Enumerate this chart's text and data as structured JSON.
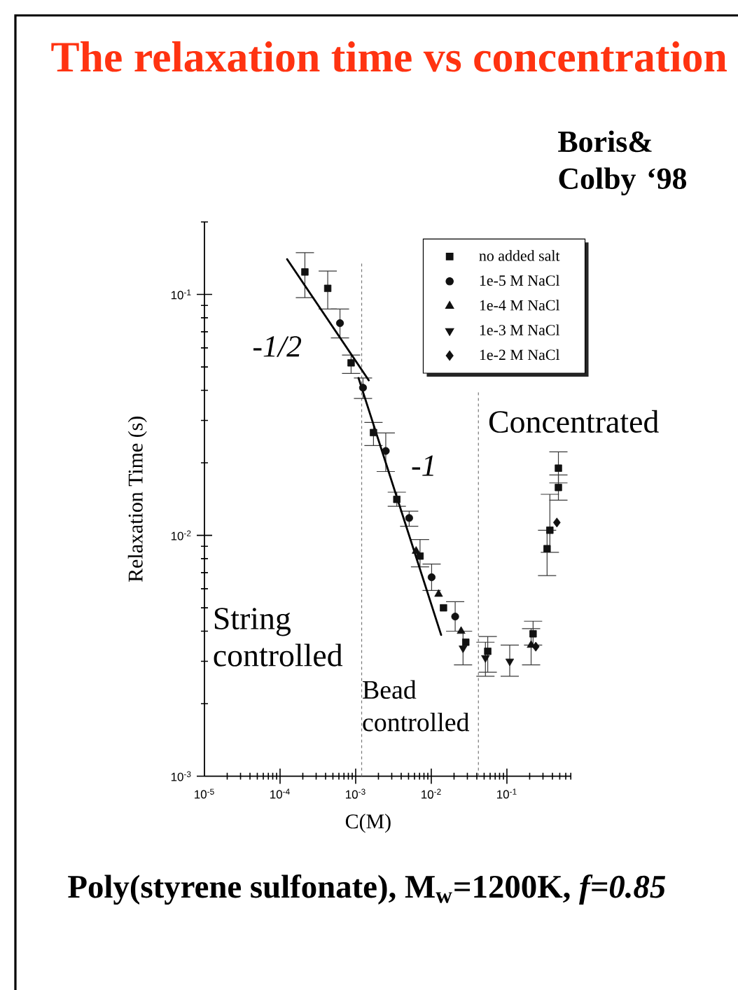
{
  "chart_data": {
    "type": "scatter",
    "title": "The relaxation time vs concentration",
    "xlabel": "C(M)",
    "ylabel": "Relaxation Time (s)",
    "log": "xy",
    "xlim": [
      1e-05,
      0.7
    ],
    "ylim": [
      0.001,
      0.2
    ],
    "xticks": [
      {
        "value": 1e-05,
        "label": "10$^{-5}$"
      },
      {
        "value": 0.0001,
        "label": "10$^{-4}$"
      },
      {
        "value": 0.001,
        "label": "10$^{-3}$"
      },
      {
        "value": 0.01,
        "label": "10$^{-2}$"
      },
      {
        "value": 0.1,
        "label": "10$^{-1}$"
      }
    ],
    "yticks": [
      {
        "value": 0.001,
        "label": "10$^{-3}$"
      },
      {
        "value": 0.01,
        "label": "10$^{-2}$"
      },
      {
        "value": 0.1,
        "label": "10$^{-1}$"
      }
    ],
    "legend": "top right",
    "series": [
      {
        "name": "no added salt",
        "color": "#111111",
        "marker": "square",
        "x": [
          0.000213,
          0.000427,
          0.00087,
          0.00172,
          0.0035,
          0.0071,
          0.0145,
          0.0286,
          0.0558,
          0.222,
          0.34,
          0.37,
          0.48,
          0.48
        ],
        "values": [
          0.124,
          0.106,
          0.052,
          0.0267,
          0.0141,
          0.0082,
          0.005,
          0.0036,
          0.0033,
          0.0039,
          0.0088,
          0.0105,
          0.0158,
          0.019
        ],
        "errors": [
          [
            0.097,
            0.149
          ],
          [
            0.087,
            0.125
          ],
          [
            0.047,
            0.056
          ],
          [
            0.0236,
            0.0294
          ],
          [
            0.0132,
            0.0151
          ],
          [
            0.0074,
            0.0096
          ],
          null,
          null,
          [
            0.0027,
            0.0038
          ],
          [
            0.0035,
            0.0044
          ],
          [
            0.0068,
            0.0105
          ],
          [
            0.0085,
            0.0148
          ],
          [
            0.014,
            0.0178
          ],
          [
            0.0165,
            0.0222
          ]
        ]
      },
      {
        "name": "1e-5 M NaCl",
        "color": "#111111",
        "marker": "circle",
        "x": [
          0.00062,
          0.00125,
          0.0025,
          0.0051,
          0.0101,
          0.0207
        ],
        "values": [
          0.076,
          0.041,
          0.0224,
          0.0118,
          0.0067,
          0.0046
        ],
        "errors": [
          [
            0.066,
            0.087
          ],
          [
            0.037,
            0.045
          ],
          [
            0.0184,
            0.0266
          ],
          [
            0.0109,
            0.0126
          ],
          [
            0.0059,
            0.0076
          ],
          [
            0.004,
            0.0053
          ]
        ]
      },
      {
        "name": "1e-4 M NaCl",
        "color": "#111111",
        "marker": "triangle",
        "x": [
          0.0063,
          0.0125,
          0.0248,
          0.209
        ],
        "values": [
          0.0086,
          0.0057,
          0.004,
          0.0035
        ],
        "errors": [
          null,
          null,
          null,
          [
            0.0029,
            0.0041
          ]
        ]
      },
      {
        "name": "1e-3 M NaCl",
        "color": "#111111",
        "marker": "triangle-down",
        "x": [
          0.0263,
          0.052,
          0.109
        ],
        "values": [
          0.0034,
          0.0031,
          0.003
        ],
        "errors": [
          [
            0.0029,
            0.004
          ],
          [
            0.0026,
            0.0036
          ],
          [
            0.0026,
            0.0035
          ]
        ]
      },
      {
        "name": "1e-2 M NaCl",
        "color": "#111111",
        "marker": "diamond",
        "x": [
          0.241,
          0.458
        ],
        "values": [
          0.00345,
          0.0113
        ]
      },
      {
        "type": "line",
        "color": "#000000",
        "marker": "none",
        "line_style": "solid",
        "x": [
          0.000124,
          0.00149
        ],
        "values": [
          0.14,
          0.044
        ]
      },
      {
        "type": "line",
        "color": "#000000",
        "marker": "none",
        "line_style": "solid",
        "x": [
          0.00109,
          0.0135
        ],
        "values": [
          0.045,
          0.00386
        ]
      }
    ],
    "ref_lines": [
      {
        "axis": "x",
        "value": 0.0012,
        "color": "#777777",
        "line_style": "dashed"
      },
      {
        "axis": "x",
        "value": 0.042,
        "color": "#777777",
        "line_style": "dashed"
      }
    ],
    "annotations": [
      "-1/2",
      "-1",
      "String controlled",
      "Bead controlled",
      "Concentrated",
      "Boris& Colby ‘98",
      "Poly(styrene sulfonate), M$_{w}$=1200K, *f=0.85*"
    ]
  }
}
